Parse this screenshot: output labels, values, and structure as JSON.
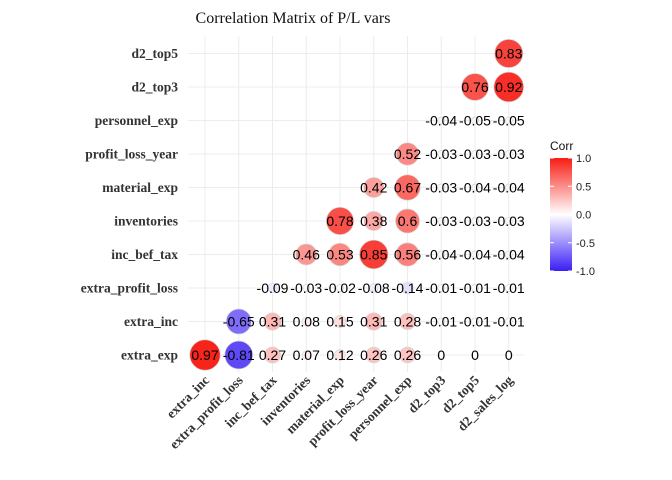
{
  "chart_data": {
    "type": "heatmap",
    "title": "Correlation Matrix of P/L vars",
    "x_categories": [
      "extra_inc",
      "extra_profit_loss",
      "inc_bef_tax",
      "inventories",
      "material_exp",
      "profit_loss_year",
      "personnel_exp",
      "d2_top3",
      "d2_top5",
      "d2_sales_log"
    ],
    "y_categories": [
      "extra_exp",
      "extra_inc",
      "extra_profit_loss",
      "inc_bef_tax",
      "inventories",
      "material_exp",
      "profit_loss_year",
      "personnel_exp",
      "d2_top3",
      "d2_top5"
    ],
    "cells": [
      {
        "x": "extra_inc",
        "y": "extra_exp",
        "value": 0.97,
        "label": "0.97"
      },
      {
        "x": "extra_profit_loss",
        "y": "extra_exp",
        "value": -0.81,
        "label": "-0.81"
      },
      {
        "x": "inc_bef_tax",
        "y": "extra_exp",
        "value": 0.27,
        "label": "0.27"
      },
      {
        "x": "inventories",
        "y": "extra_exp",
        "value": 0.07,
        "label": "0.07"
      },
      {
        "x": "material_exp",
        "y": "extra_exp",
        "value": 0.12,
        "label": "0.12"
      },
      {
        "x": "profit_loss_year",
        "y": "extra_exp",
        "value": 0.26,
        "label": "0.26"
      },
      {
        "x": "personnel_exp",
        "y": "extra_exp",
        "value": 0.26,
        "label": "0.26"
      },
      {
        "x": "d2_top3",
        "y": "extra_exp",
        "value": 0,
        "label": "0"
      },
      {
        "x": "d2_top5",
        "y": "extra_exp",
        "value": 0,
        "label": "0"
      },
      {
        "x": "d2_sales_log",
        "y": "extra_exp",
        "value": 0,
        "label": "0"
      },
      {
        "x": "extra_profit_loss",
        "y": "extra_inc",
        "value": -0.65,
        "label": "-0.65"
      },
      {
        "x": "inc_bef_tax",
        "y": "extra_inc",
        "value": 0.31,
        "label": "0.31"
      },
      {
        "x": "inventories",
        "y": "extra_inc",
        "value": 0.08,
        "label": "0.08"
      },
      {
        "x": "material_exp",
        "y": "extra_inc",
        "value": 0.15,
        "label": "0.15"
      },
      {
        "x": "profit_loss_year",
        "y": "extra_inc",
        "value": 0.31,
        "label": "0.31"
      },
      {
        "x": "personnel_exp",
        "y": "extra_inc",
        "value": 0.28,
        "label": "0.28"
      },
      {
        "x": "d2_top3",
        "y": "extra_inc",
        "value": -0.01,
        "label": "-0.01"
      },
      {
        "x": "d2_top5",
        "y": "extra_inc",
        "value": -0.01,
        "label": "-0.01"
      },
      {
        "x": "d2_sales_log",
        "y": "extra_inc",
        "value": -0.01,
        "label": "-0.01"
      },
      {
        "x": "inc_bef_tax",
        "y": "extra_profit_loss",
        "value": -0.09,
        "label": "-0.09"
      },
      {
        "x": "inventories",
        "y": "extra_profit_loss",
        "value": -0.03,
        "label": "-0.03"
      },
      {
        "x": "material_exp",
        "y": "extra_profit_loss",
        "value": -0.02,
        "label": "-0.02"
      },
      {
        "x": "profit_loss_year",
        "y": "extra_profit_loss",
        "value": -0.08,
        "label": "-0.08"
      },
      {
        "x": "personnel_exp",
        "y": "extra_profit_loss",
        "value": -0.14,
        "label": "-0.14"
      },
      {
        "x": "d2_top3",
        "y": "extra_profit_loss",
        "value": -0.01,
        "label": "-0.01"
      },
      {
        "x": "d2_top5",
        "y": "extra_profit_loss",
        "value": -0.01,
        "label": "-0.01"
      },
      {
        "x": "d2_sales_log",
        "y": "extra_profit_loss",
        "value": -0.01,
        "label": "-0.01"
      },
      {
        "x": "inventories",
        "y": "inc_bef_tax",
        "value": 0.46,
        "label": "0.46"
      },
      {
        "x": "material_exp",
        "y": "inc_bef_tax",
        "value": 0.53,
        "label": "0.53"
      },
      {
        "x": "profit_loss_year",
        "y": "inc_bef_tax",
        "value": 0.85,
        "label": "0.85"
      },
      {
        "x": "personnel_exp",
        "y": "inc_bef_tax",
        "value": 0.56,
        "label": "0.56"
      },
      {
        "x": "d2_top3",
        "y": "inc_bef_tax",
        "value": -0.04,
        "label": "-0.04"
      },
      {
        "x": "d2_top5",
        "y": "inc_bef_tax",
        "value": -0.04,
        "label": "-0.04"
      },
      {
        "x": "d2_sales_log",
        "y": "inc_bef_tax",
        "value": -0.04,
        "label": "-0.04"
      },
      {
        "x": "material_exp",
        "y": "inventories",
        "value": 0.78,
        "label": "0.78"
      },
      {
        "x": "profit_loss_year",
        "y": "inventories",
        "value": 0.38,
        "label": "0.38"
      },
      {
        "x": "personnel_exp",
        "y": "inventories",
        "value": 0.6,
        "label": "0.6"
      },
      {
        "x": "d2_top3",
        "y": "inventories",
        "value": -0.03,
        "label": "-0.03"
      },
      {
        "x": "d2_top5",
        "y": "inventories",
        "value": -0.03,
        "label": "-0.03"
      },
      {
        "x": "d2_sales_log",
        "y": "inventories",
        "value": -0.03,
        "label": "-0.03"
      },
      {
        "x": "profit_loss_year",
        "y": "material_exp",
        "value": 0.42,
        "label": "0.42"
      },
      {
        "x": "personnel_exp",
        "y": "material_exp",
        "value": 0.67,
        "label": "0.67"
      },
      {
        "x": "d2_top3",
        "y": "material_exp",
        "value": -0.03,
        "label": "-0.03"
      },
      {
        "x": "d2_top5",
        "y": "material_exp",
        "value": -0.04,
        "label": "-0.04"
      },
      {
        "x": "d2_sales_log",
        "y": "material_exp",
        "value": -0.04,
        "label": "-0.04"
      },
      {
        "x": "personnel_exp",
        "y": "profit_loss_year",
        "value": 0.52,
        "label": "0.52"
      },
      {
        "x": "d2_top3",
        "y": "profit_loss_year",
        "value": -0.03,
        "label": "-0.03"
      },
      {
        "x": "d2_top5",
        "y": "profit_loss_year",
        "value": -0.03,
        "label": "-0.03"
      },
      {
        "x": "d2_sales_log",
        "y": "profit_loss_year",
        "value": -0.03,
        "label": "-0.03"
      },
      {
        "x": "d2_top3",
        "y": "personnel_exp",
        "value": -0.04,
        "label": "-0.04"
      },
      {
        "x": "d2_top5",
        "y": "personnel_exp",
        "value": -0.05,
        "label": "-0.05"
      },
      {
        "x": "d2_sales_log",
        "y": "personnel_exp",
        "value": -0.05,
        "label": "-0.05"
      },
      {
        "x": "d2_top5",
        "y": "d2_top3",
        "value": 0.76,
        "label": "0.76"
      },
      {
        "x": "d2_sales_log",
        "y": "d2_top3",
        "value": 0.92,
        "label": "0.92"
      },
      {
        "x": "d2_sales_log",
        "y": "d2_top5",
        "value": 0.83,
        "label": "0.83"
      }
    ],
    "legend": {
      "title": "Corr",
      "limits": [
        -1,
        1
      ],
      "ticks": [
        "1.0",
        "0.5",
        "0.0",
        "-0.5",
        "-1.0"
      ],
      "tick_values": [
        1.0,
        0.5,
        0.0,
        -0.5,
        -1.0
      ],
      "low_color": "#3a1ef5",
      "mid_color": "#ffffff",
      "high_color": "#f71d14",
      "placement": "right"
    },
    "grid": true
  }
}
